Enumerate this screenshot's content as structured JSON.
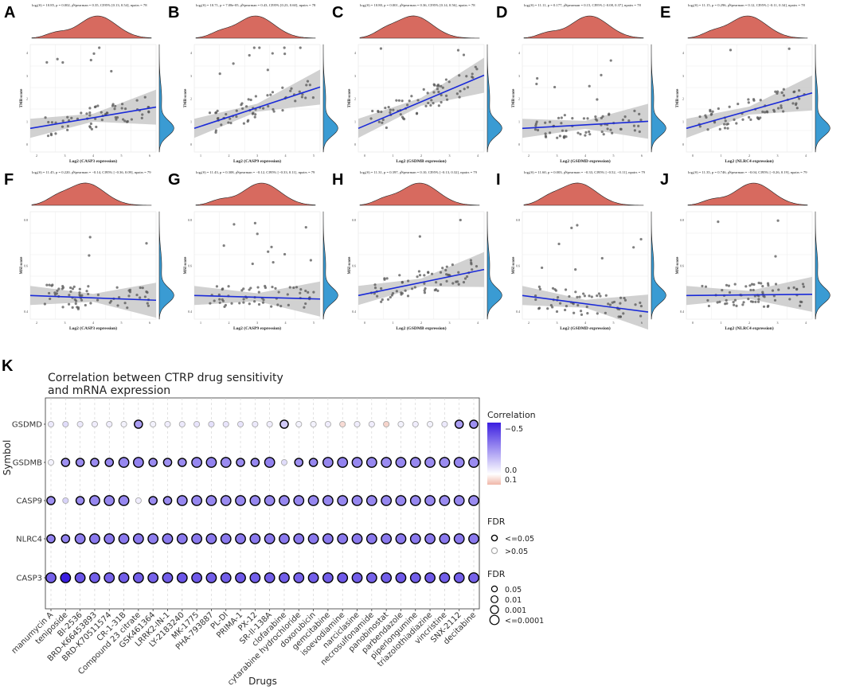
{
  "palette": {
    "density_fill": "#d76a5f",
    "marginal_fill": "#3a9bd3",
    "reg_line": "#1a2ad8",
    "ci_fill": "#c9c9c9",
    "point": "#555555",
    "neg_corr": "#3b1ee0",
    "pos_corr": "#f0b7a8",
    "bubble_sig_border": "#000000",
    "bubble_ns_border": "#aaaaaa"
  },
  "scatter_panels": [
    {
      "label": "A",
      "subtitle": "logₑ(S) = 10.85, p = 0.002, ρ̂Spearman = 0.35, CI95% [0.13, 0.54], npairs = 78",
      "ylabel": "TMB score",
      "xlabel": "Log2 (CASP3 expression)",
      "xticks": [
        "2",
        "3",
        "4",
        "5",
        "6"
      ],
      "yticks": [
        "0",
        "1",
        "2",
        "3",
        "4"
      ]
    },
    {
      "label": "B",
      "subtitle": "logₑ(S) = 10.71, p = 7.08e-05, ρ̂Spearman = 0.43, CI95% [0.23, 0.60], npairs = 78",
      "ylabel": "TMB score",
      "xlabel": "Log2 (CASP9 expression)",
      "xticks": [
        "1",
        "2",
        "3",
        "4",
        "5"
      ],
      "yticks": [
        "0",
        "1",
        "2",
        "3",
        "4"
      ]
    },
    {
      "label": "C",
      "subtitle": "logₑ(S) = 10.80, p = 0.001, ρ̂Spearman = 0.36, CI95% [0.14, 0.56], npairs = 78",
      "ylabel": "TMB score",
      "xlabel": "Log2 (GSDMB expression)",
      "xticks": [
        "0",
        "1",
        "2",
        "3",
        "4"
      ],
      "yticks": [
        "0",
        "1",
        "2",
        "3",
        "4"
      ]
    },
    {
      "label": "D",
      "subtitle": "logₑ(S) = 11.11, p = 0.177, ρ̂Spearman = 0.15, CI95% [−0.08, 0.37], npairs = 78",
      "ylabel": "TMB score",
      "xlabel": "Log2 (GSDMD expression)",
      "xticks": [
        "2",
        "3",
        "4",
        "5",
        "6"
      ],
      "yticks": [
        "0",
        "1",
        "2",
        "3",
        "4"
      ]
    },
    {
      "label": "E",
      "subtitle": "logₑ(S) = 11.15, p = 0.296, ρ̂Spearman = 0.12, CI95% [−0.11, 0.34], npairs = 78",
      "ylabel": "TMB score",
      "xlabel": "Log2 (NLRC4 expression)",
      "xticks": [
        "0",
        "1",
        "2",
        "3",
        "4"
      ],
      "yticks": [
        "0",
        "1",
        "2",
        "3",
        "4"
      ]
    },
    {
      "label": "F",
      "subtitle": "logₑ(S) = 11.45, p = 0.220, ρ̂Spearman = −0.14, CI95% [−0.36, 0.09], npairs = 79",
      "ylabel": "MSI score",
      "xlabel": "Log2 (CASP3 expression)",
      "xticks": [
        "2",
        "3",
        "4",
        "5",
        "6"
      ],
      "yticks": [
        "0.4",
        "0.6",
        "0.8"
      ]
    },
    {
      "label": "G",
      "subtitle": "logₑ(S) = 11.43, p = 0.308, ρ̂Spearman = −0.12, CI95% [−0.33, 0.11], npairs = 79",
      "ylabel": "MSI score",
      "xlabel": "Log2 (CASP9 expression)",
      "xticks": [
        "1",
        "2",
        "3",
        "4",
        "5"
      ],
      "yticks": [
        "0.4",
        "0.6",
        "0.8"
      ]
    },
    {
      "label": "H",
      "subtitle": "logₑ(S) = 11.31, p = 0.397, ρ̂Spearman = 0.10, CI95% [−0.13, 0.32], npairs = 79",
      "ylabel": "MSI score",
      "xlabel": "Log2 (GSDMB expression)",
      "xticks": [
        "0",
        "1",
        "2",
        "3",
        "4"
      ],
      "yticks": [
        "0.4",
        "0.6",
        "0.8"
      ]
    },
    {
      "label": "I",
      "subtitle": "logₑ(S) = 11.60, p = 0.003, ρ̂Spearman = −0.33, CI95% [−0.52, −0.11], npairs = 79",
      "ylabel": "MSI score",
      "xlabel": "Log2 (GSDMD expression)",
      "xticks": [
        "2",
        "3",
        "4",
        "5",
        "6"
      ],
      "yticks": [
        "0.4",
        "0.6",
        "0.8"
      ]
    },
    {
      "label": "J",
      "subtitle": "logₑ(S) = 11.35, p = 0.746, ρ̂Spearman = −0.04, CI95% [−0.26, 0.19], npairs = 79",
      "ylabel": "MSI score",
      "xlabel": "Log2 (NLRC4 expression)",
      "xticks": [
        "0",
        "1",
        "2",
        "3",
        "4"
      ],
      "yticks": [
        "0.4",
        "0.6",
        "0.8"
      ]
    }
  ],
  "chart_data": {
    "type": "scatter",
    "label": "K",
    "title": "Correlation between CTRP drug sensitivity\nand mRNA expression",
    "xlabel": "Drugs",
    "ylabel": "Symbol",
    "symbols": [
      "GSDMD",
      "GSDMB",
      "CASP9",
      "NLRC4",
      "CASP3"
    ],
    "drugs": [
      "manumycin A",
      "teniposide",
      "BI-2536",
      "BRD-K66453893",
      "BRD-K70511574",
      "CR-1-31B",
      "Compound 23 citrate",
      "GSK461364",
      "LRRK2-IN-1",
      "LY-2183240",
      "MK-1775",
      "PHA-793887",
      "PL-DI",
      "PRIMA-1",
      "PX-12",
      "SR-II-138A",
      "clofarabine",
      "cytarabine hydrochloride",
      "doxorubicin",
      "gemcitabine",
      "isoevodiamine",
      "narciclasine",
      "necrosulfonamide",
      "panobinostat",
      "parbendazole",
      "piperlongumine",
      "triazolothiadiazine",
      "vincristine",
      "SNX-2112",
      "decitabine"
    ],
    "drugs_shown": [
      "manumycin A",
      "teniposide",
      "BI-2536",
      "BRD-K66453893",
      "BRD-K70511574",
      "CR-1-31B",
      "Compound 23 citrate",
      "GSK461364",
      "LRRK2-IN-1",
      "LY-2183240",
      "MK-1775",
      "PHA-793887",
      "PL-DI",
      "PRIMA-1",
      "PX-12",
      "SR-II-138A",
      "clofarabine",
      "cytarabine hydrochloride",
      "doxorubicin",
      "gemcitabine",
      "isoevodiamine",
      "narciclasine",
      "necrosulfonamide",
      "panobinostat",
      "parbendazole",
      "piperlongumine",
      "triazolothiadiazine",
      "vincristine",
      "SNX-2112",
      "decitabine"
    ],
    "series": [
      {
        "name": "GSDMD",
        "correlation": [
          -0.05,
          -0.08,
          -0.05,
          -0.04,
          -0.04,
          -0.03,
          -0.22,
          -0.03,
          -0.04,
          -0.05,
          -0.06,
          -0.07,
          -0.06,
          -0.06,
          -0.05,
          -0.04,
          -0.12,
          -0.03,
          -0.03,
          -0.04,
          0.05,
          -0.04,
          -0.04,
          0.06,
          -0.03,
          -0.04,
          -0.03,
          -0.05,
          -0.22,
          -0.25
        ],
        "significant": [
          false,
          false,
          false,
          false,
          false,
          false,
          true,
          false,
          false,
          false,
          false,
          false,
          false,
          false,
          false,
          false,
          true,
          false,
          false,
          false,
          false,
          false,
          false,
          false,
          false,
          false,
          false,
          false,
          true,
          true
        ]
      },
      {
        "name": "GSDMB",
        "correlation": [
          -0.03,
          -0.25,
          -0.26,
          -0.26,
          -0.27,
          -0.27,
          -0.28,
          -0.26,
          -0.25,
          -0.26,
          -0.27,
          -0.28,
          -0.26,
          -0.26,
          -0.27,
          -0.28,
          -0.08,
          -0.25,
          -0.27,
          -0.27,
          -0.28,
          -0.27,
          -0.27,
          -0.26,
          -0.27,
          -0.27,
          -0.26,
          -0.26,
          -0.27,
          -0.26
        ],
        "significant": [
          false,
          true,
          true,
          true,
          true,
          true,
          true,
          true,
          true,
          true,
          true,
          true,
          true,
          true,
          true,
          true,
          false,
          true,
          true,
          true,
          true,
          true,
          true,
          true,
          true,
          true,
          true,
          true,
          true,
          true
        ]
      },
      {
        "name": "CASP9",
        "correlation": [
          -0.25,
          -0.1,
          -0.26,
          -0.27,
          -0.27,
          -0.27,
          -0.04,
          -0.26,
          -0.26,
          -0.27,
          -0.27,
          -0.27,
          -0.26,
          -0.27,
          -0.27,
          -0.27,
          -0.27,
          -0.27,
          -0.27,
          -0.27,
          -0.27,
          -0.27,
          -0.27,
          -0.27,
          -0.27,
          -0.27,
          -0.27,
          -0.26,
          -0.27,
          -0.26
        ],
        "significant": [
          true,
          false,
          true,
          true,
          true,
          true,
          false,
          true,
          true,
          true,
          true,
          true,
          true,
          true,
          true,
          true,
          true,
          true,
          true,
          true,
          true,
          true,
          true,
          true,
          true,
          true,
          true,
          true,
          true,
          true
        ]
      },
      {
        "name": "NLRC4",
        "correlation": [
          -0.28,
          -0.28,
          -0.29,
          -0.3,
          -0.3,
          -0.3,
          -0.3,
          -0.29,
          -0.3,
          -0.3,
          -0.3,
          -0.3,
          -0.3,
          -0.3,
          -0.3,
          -0.3,
          -0.3,
          -0.3,
          -0.3,
          -0.3,
          -0.3,
          -0.3,
          -0.3,
          -0.3,
          -0.3,
          -0.3,
          -0.3,
          -0.3,
          -0.3,
          -0.3
        ],
        "significant": [
          true,
          true,
          true,
          true,
          true,
          true,
          true,
          true,
          true,
          true,
          true,
          true,
          true,
          true,
          true,
          true,
          true,
          true,
          true,
          true,
          true,
          true,
          true,
          true,
          true,
          true,
          true,
          true,
          true,
          true
        ]
      },
      {
        "name": "CASP3",
        "correlation": [
          -0.35,
          -0.52,
          -0.38,
          -0.36,
          -0.35,
          -0.36,
          -0.36,
          -0.35,
          -0.36,
          -0.38,
          -0.37,
          -0.36,
          -0.36,
          -0.37,
          -0.36,
          -0.36,
          -0.36,
          -0.35,
          -0.36,
          -0.36,
          -0.37,
          -0.36,
          -0.35,
          -0.36,
          -0.37,
          -0.36,
          -0.37,
          -0.36,
          -0.36,
          -0.35
        ],
        "significant": [
          true,
          true,
          true,
          true,
          true,
          true,
          true,
          true,
          true,
          true,
          true,
          true,
          true,
          true,
          true,
          true,
          true,
          true,
          true,
          true,
          true,
          true,
          true,
          true,
          true,
          true,
          true,
          true,
          true,
          true
        ]
      }
    ],
    "fdr_size_class": [
      [
        1,
        1,
        1,
        1,
        1,
        1,
        3,
        1,
        1,
        1,
        1,
        1,
        1,
        1,
        1,
        1,
        3,
        1,
        1,
        1,
        1,
        1,
        1,
        1,
        1,
        1,
        1,
        1,
        3,
        3
      ],
      [
        1,
        3,
        3,
        3,
        3,
        4,
        4,
        3,
        3,
        3,
        4,
        4,
        4,
        3,
        3,
        4,
        1,
        3,
        3,
        4,
        4,
        4,
        4,
        4,
        4,
        4,
        4,
        4,
        4,
        4
      ],
      [
        3,
        1,
        3,
        4,
        4,
        4,
        1,
        3,
        3,
        4,
        4,
        4,
        4,
        4,
        4,
        4,
        4,
        4,
        4,
        4,
        4,
        4,
        4,
        4,
        4,
        4,
        4,
        4,
        4,
        4
      ],
      [
        3,
        3,
        4,
        4,
        4,
        4,
        4,
        4,
        4,
        4,
        4,
        4,
        4,
        4,
        4,
        4,
        4,
        4,
        4,
        4,
        4,
        4,
        4,
        4,
        4,
        4,
        4,
        4,
        4,
        4
      ],
      [
        4,
        4,
        4,
        4,
        4,
        4,
        4,
        4,
        4,
        4,
        4,
        4,
        4,
        4,
        4,
        4,
        4,
        4,
        4,
        4,
        4,
        4,
        4,
        4,
        4,
        4,
        4,
        4,
        4,
        4
      ]
    ],
    "color_scale": {
      "title": "Correlation",
      "min": -0.5,
      "max": 0.1,
      "ticks": [
        {
          "value": -0.5,
          "label": "−0.5"
        },
        {
          "value": 0.0,
          "label": "0.0"
        },
        {
          "value": 0.1,
          "label": "0.1"
        }
      ]
    },
    "legend_fdr_border": {
      "title": "FDR",
      "items": [
        "<=0.05",
        ">0.05"
      ]
    },
    "legend_fdr_size": {
      "title": "FDR",
      "items": [
        "0.05",
        "0.01",
        "0.001",
        "<=0.0001"
      ]
    }
  }
}
